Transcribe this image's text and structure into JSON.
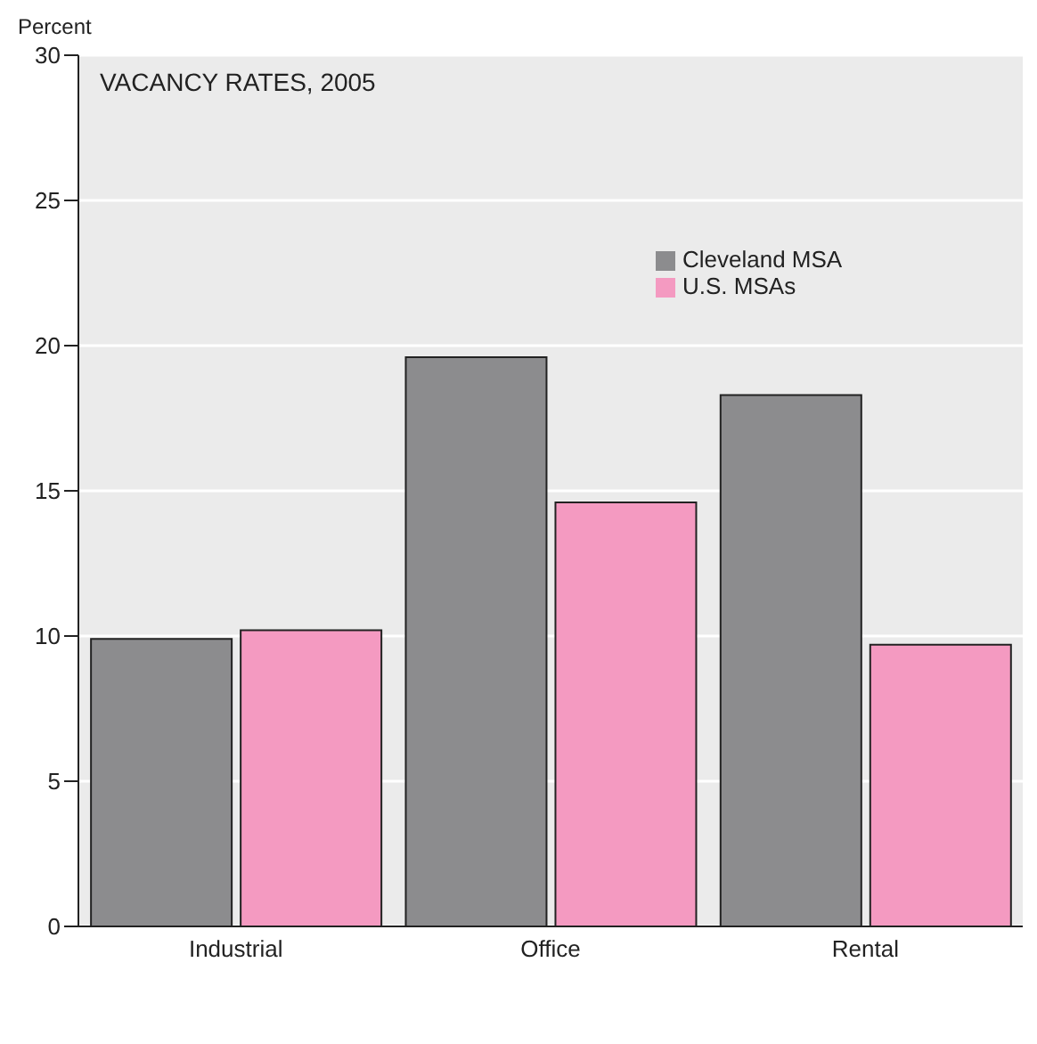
{
  "chart_data": {
    "type": "bar",
    "title": "VACANCY RATES, 2005",
    "ylabel": "Percent",
    "categories": [
      "Industrial",
      "Office",
      "Rental"
    ],
    "series": [
      {
        "name": "Cleveland MSA",
        "color": "#8c8c8e",
        "values": [
          9.9,
          19.6,
          18.3
        ]
      },
      {
        "name": "U.S. MSAs",
        "color": "#f49ac1",
        "values": [
          10.2,
          14.6,
          9.7
        ]
      }
    ],
    "ylim": [
      0,
      30
    ],
    "yticks": [
      0,
      5,
      10,
      15,
      20,
      25,
      30
    ],
    "grid": "y",
    "legend": "top right"
  }
}
